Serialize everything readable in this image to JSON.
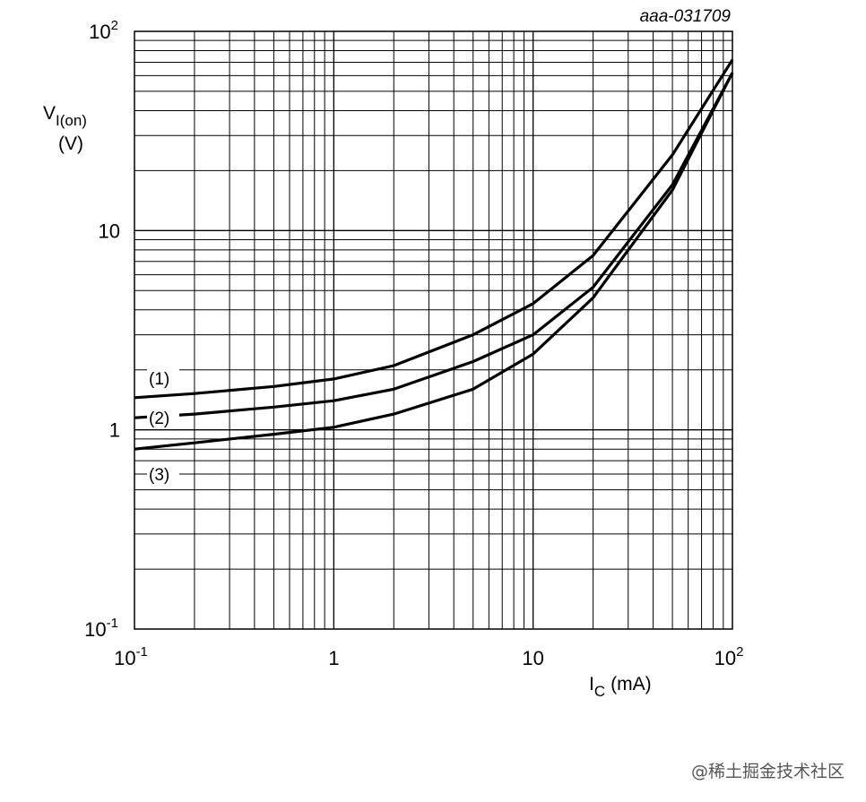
{
  "chart_data": {
    "type": "line",
    "code": "aaa-031709",
    "xlabel": {
      "main": "I",
      "sub": "C",
      "unit": "(mA)"
    },
    "ylabel": {
      "main": "V",
      "sub": "I(on)",
      "unit": "(V)"
    },
    "x_scale": "log",
    "y_scale": "log",
    "xlim": [
      0.1,
      100
    ],
    "ylim": [
      0.1,
      100
    ],
    "grid": true,
    "x_ticks": [
      {
        "value": 0.1,
        "base": "10",
        "exp": "-1"
      },
      {
        "value": 1,
        "base": "1",
        "exp": ""
      },
      {
        "value": 10,
        "base": "10",
        "exp": ""
      },
      {
        "value": 100,
        "base": "10",
        "exp": "2"
      }
    ],
    "y_ticks": [
      {
        "value": 0.1,
        "base": "10",
        "exp": "-1"
      },
      {
        "value": 1,
        "base": "1",
        "exp": ""
      },
      {
        "value": 10,
        "base": "10",
        "exp": ""
      },
      {
        "value": 100,
        "base": "10",
        "exp": "2"
      }
    ],
    "series": [
      {
        "name": "(1)",
        "x": [
          0.1,
          0.2,
          0.5,
          1,
          2,
          5,
          10,
          20,
          50,
          100
        ],
        "y": [
          1.45,
          1.52,
          1.65,
          1.8,
          2.1,
          3.0,
          4.3,
          7.5,
          24,
          72
        ]
      },
      {
        "name": "(2)",
        "x": [
          0.1,
          0.2,
          0.5,
          1,
          2,
          5,
          10,
          20,
          50,
          100
        ],
        "y": [
          1.15,
          1.2,
          1.3,
          1.4,
          1.6,
          2.2,
          3.0,
          5.2,
          17,
          62
        ]
      },
      {
        "name": "(3)",
        "x": [
          0.1,
          0.2,
          0.5,
          1,
          2,
          5,
          10,
          20,
          50,
          100
        ],
        "y": [
          0.8,
          0.86,
          0.95,
          1.03,
          1.2,
          1.6,
          2.4,
          4.6,
          16,
          62
        ]
      }
    ]
  },
  "watermark": "@稀土掘金技术社区"
}
